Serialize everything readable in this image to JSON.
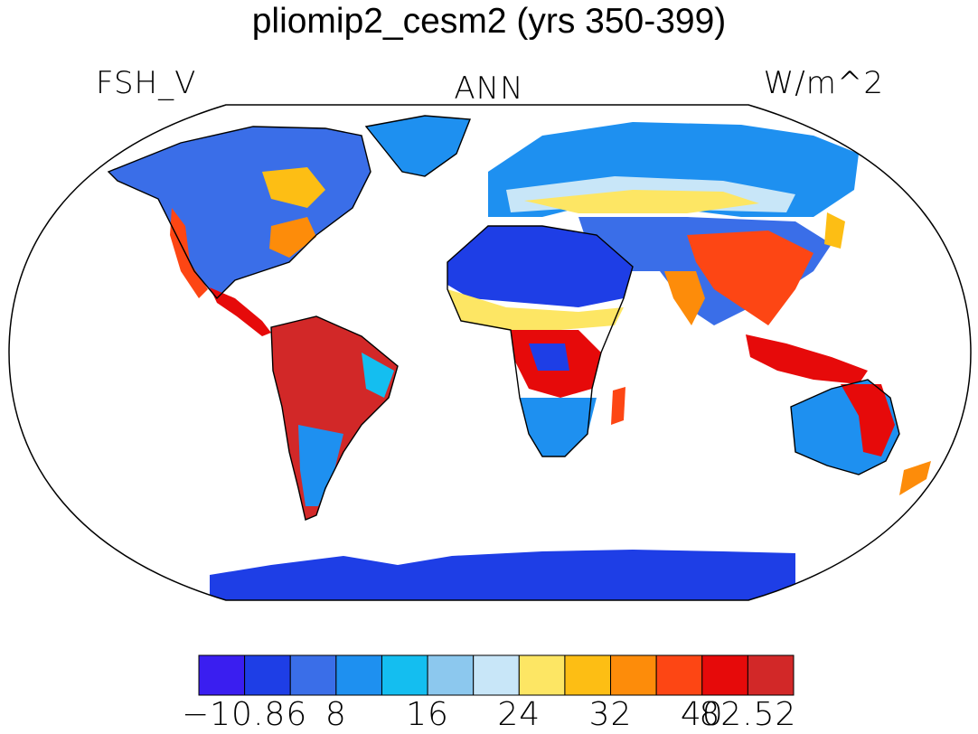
{
  "title": "pliomip2_cesm2 (yrs 350-399)",
  "variable": "FSH_V",
  "season": "ANN",
  "units": "W/m^2",
  "colorbar": {
    "colors": [
      "#3a1ef0",
      "#1e3ee6",
      "#3a6ee8",
      "#1e90f0",
      "#14bef0",
      "#8cc8ee",
      "#c8e6f8",
      "#fde664",
      "#fdbe14",
      "#fd8c0a",
      "#fd4614",
      "#e60a0a",
      "#d22828"
    ],
    "tick_labels": [
      "−10.86",
      "8",
      "16",
      "24",
      "32",
      "40",
      "82.52"
    ]
  }
}
